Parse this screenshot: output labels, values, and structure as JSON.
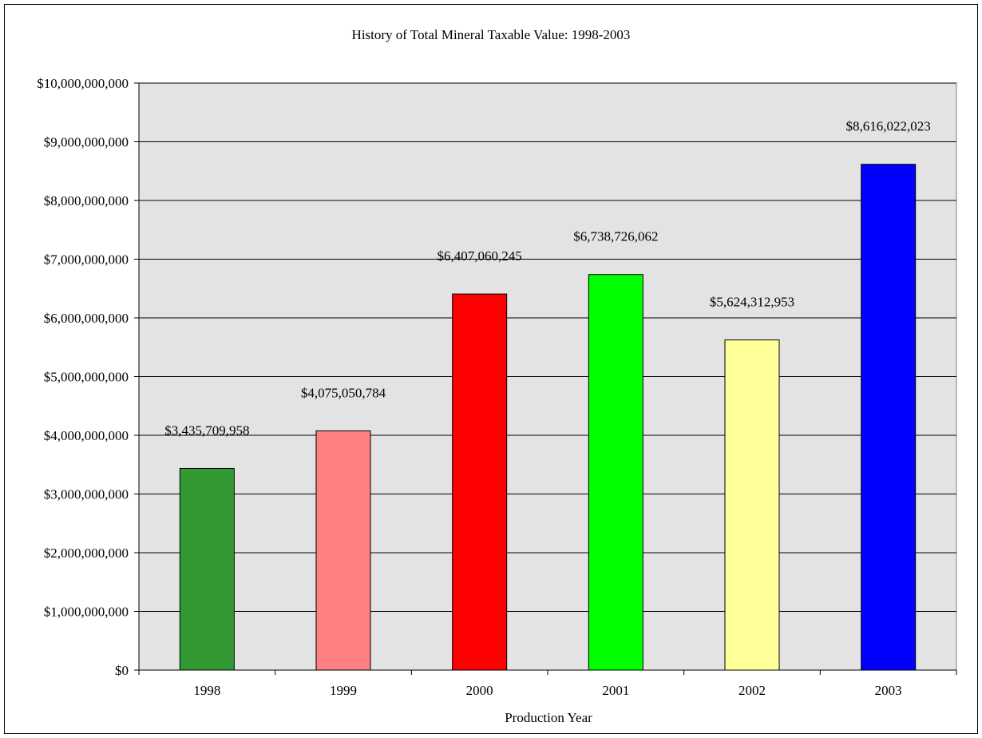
{
  "chart_data": {
    "type": "bar",
    "title": "History of Total Mineral Taxable Value: 1998-2003",
    "xlabel": "Production Year",
    "ylabel": "",
    "categories": [
      "1998",
      "1999",
      "2000",
      "2001",
      "2002",
      "2003"
    ],
    "values": [
      3435709958,
      4075050784,
      6407060245,
      6738726062,
      5624312953,
      8616022023
    ],
    "value_labels": [
      "$3,435,709,958",
      "$4,075,050,784",
      "$6,407,060,245",
      "$6,738,726,062",
      "$5,624,312,953",
      "$8,616,022,023"
    ],
    "y_ticks": [
      0,
      1000000000,
      2000000000,
      3000000000,
      4000000000,
      5000000000,
      6000000000,
      7000000000,
      8000000000,
      9000000000,
      10000000000
    ],
    "y_tick_labels": [
      "$0",
      "$1,000,000,000",
      "$2,000,000,000",
      "$3,000,000,000",
      "$4,000,000,000",
      "$5,000,000,000",
      "$6,000,000,000",
      "$7,000,000,000",
      "$8,000,000,000",
      "$9,000,000,000",
      "$10,000,000,000"
    ],
    "ylim": [
      0,
      10000000000
    ],
    "grid": true,
    "legend": "none",
    "bar_colors": [
      "#339933",
      "#FF8080",
      "#FF0000",
      "#00FF00",
      "#FFFF99",
      "#0000FF"
    ],
    "plot_background": "#E3E3E3"
  }
}
